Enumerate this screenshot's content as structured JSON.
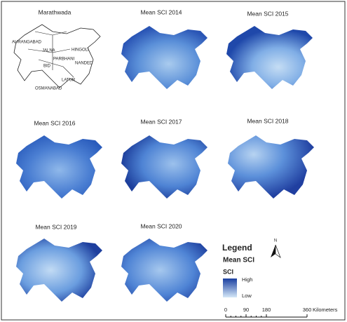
{
  "panels": [
    {
      "title": "Marathwada"
    },
    {
      "title": "Mean SCI 2014"
    },
    {
      "title": "Mean SCI 2015"
    },
    {
      "title": "Mean SCI 2016"
    },
    {
      "title": "Mean SCI 2017"
    },
    {
      "title": "Mean SCI 2018"
    },
    {
      "title": "Mean SCI 2019"
    },
    {
      "title": "Mean SCI 2020"
    }
  ],
  "district_labels": [
    "AURANGABAD",
    "JALNA",
    "HINGOLI",
    "PARBHANI",
    "NANDED",
    "BID",
    "LATUR",
    "OSMANABAD"
  ],
  "legend": {
    "title": "Legend",
    "subtitle": "Mean SCI",
    "field": "SCI",
    "high": "High",
    "low": "Low"
  },
  "north_arrow": "N",
  "scale_bar": {
    "ticks": [
      0,
      90,
      180,
      360
    ],
    "unit": "Kilometers"
  }
}
